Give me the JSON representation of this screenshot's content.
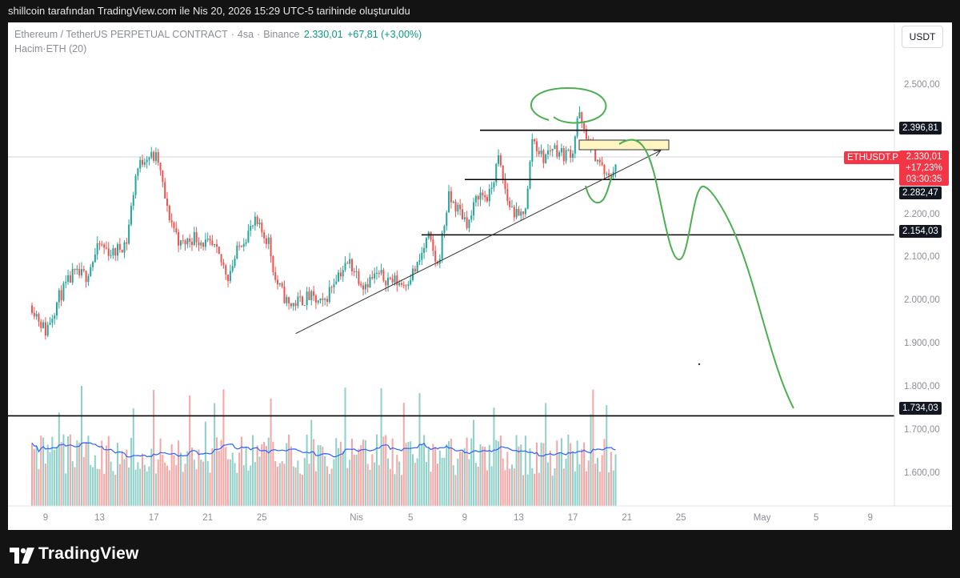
{
  "header": {
    "publish_note": "shillcoin tarafından TradingView.com ile Nis 20, 2026 15:29 UTC-5 tarihinde oluşturuldu"
  },
  "legend": {
    "symbol": "Ethereum / TetherUS PERPETUAL CONTRACT",
    "interval": "4sa",
    "exchange": "Binance",
    "price": "2.330,01",
    "change": "+67,81 (+3,00%)",
    "volume_label": "Hacim",
    "volume_ma": "ETH (20)"
  },
  "toolbar": {
    "currency": "USDT"
  },
  "price_tags": {
    "symbol": "ETHUSDT.P",
    "last_price": "2.330,01",
    "last_change": "+17,23%",
    "countdown": "03:30:35",
    "levels": [
      "2.396,81",
      "2.282,47",
      "2.154,03",
      "1.734,03"
    ]
  },
  "footer": {
    "brand": "TradingView"
  },
  "colors": {
    "up": "#26a69a",
    "down": "#ef5350",
    "vol_up": "#8fd1c9",
    "vol_down": "#f5a7a6",
    "ma_line": "#2962ff",
    "drawing": "#4caf50",
    "tag_red": "#f23645"
  },
  "chart_data": {
    "type": "candlestick",
    "title": "",
    "y_axis": {
      "ticks": [
        1600,
        1700,
        1800,
        1900,
        2000,
        2100,
        2200,
        2300,
        2400,
        2500
      ],
      "tick_labels": [
        "1.600,00",
        "1.700,00",
        "1.800,00",
        "1.900,00",
        "2.000,00",
        "2.100,00",
        "2.200,00",
        "2.300,00",
        "2.400,00",
        "2.500,00"
      ],
      "range": [
        1520,
        2560
      ]
    },
    "x_axis": {
      "tick_labels": [
        "9",
        "13",
        "17",
        "21",
        "25",
        "Nis",
        "5",
        "9",
        "13",
        "17",
        "21",
        "25",
        "May",
        "5",
        "9"
      ],
      "tick_days": [
        9,
        13,
        17,
        21,
        25,
        32,
        36,
        40,
        44,
        48,
        52,
        56,
        62,
        66,
        70
      ],
      "start_day": 8,
      "start_label": "8 Mart 2026"
    },
    "levels": [
      {
        "price": 2396.81,
        "label": "2.396,81"
      },
      {
        "price": 2282.47,
        "label": "2.282,47"
      },
      {
        "price": 2154.03,
        "label": "2.154,03"
      },
      {
        "price": 1734.03,
        "label": "1.734,03"
      }
    ],
    "trendline": {
      "from": {
        "day": 27.5,
        "price": 1925
      },
      "to": {
        "day": 54.5,
        "price": 2350
      }
    },
    "anchors": [
      {
        "day": 8.0,
        "price": 1990
      },
      {
        "day": 9.0,
        "price": 1930
      },
      {
        "day": 10.0,
        "price": 2010
      },
      {
        "day": 11.0,
        "price": 2060
      },
      {
        "day": 12.0,
        "price": 2060
      },
      {
        "day": 13.0,
        "price": 2130
      },
      {
        "day": 14.0,
        "price": 2110
      },
      {
        "day": 15.0,
        "price": 2140
      },
      {
        "day": 15.7,
        "price": 2300
      },
      {
        "day": 16.4,
        "price": 2340
      },
      {
        "day": 17.3,
        "price": 2330
      },
      {
        "day": 18.0,
        "price": 2210
      },
      {
        "day": 19.0,
        "price": 2130
      },
      {
        "day": 20.0,
        "price": 2150
      },
      {
        "day": 21.5,
        "price": 2120
      },
      {
        "day": 22.5,
        "price": 2060
      },
      {
        "day": 23.5,
        "price": 2140
      },
      {
        "day": 24.5,
        "price": 2180
      },
      {
        "day": 25.5,
        "price": 2140
      },
      {
        "day": 26.0,
        "price": 2050
      },
      {
        "day": 27.0,
        "price": 1990
      },
      {
        "day": 28.5,
        "price": 2010
      },
      {
        "day": 29.5,
        "price": 1990
      },
      {
        "day": 30.5,
        "price": 2060
      },
      {
        "day": 31.5,
        "price": 2090
      },
      {
        "day": 32.5,
        "price": 2040
      },
      {
        "day": 33.5,
        "price": 2060
      },
      {
        "day": 34.5,
        "price": 2050
      },
      {
        "day": 35.5,
        "price": 2040
      },
      {
        "day": 36.5,
        "price": 2080
      },
      {
        "day": 37.3,
        "price": 2150
      },
      {
        "day": 38.0,
        "price": 2080
      },
      {
        "day": 38.8,
        "price": 2240
      },
      {
        "day": 39.6,
        "price": 2210
      },
      {
        "day": 40.3,
        "price": 2180
      },
      {
        "day": 41.0,
        "price": 2250
      },
      {
        "day": 41.8,
        "price": 2240
      },
      {
        "day": 42.5,
        "price": 2330
      },
      {
        "day": 43.2,
        "price": 2230
      },
      {
        "day": 44.0,
        "price": 2190
      },
      {
        "day": 44.6,
        "price": 2230
      },
      {
        "day": 45.0,
        "price": 2380
      },
      {
        "day": 45.8,
        "price": 2330
      },
      {
        "day": 46.5,
        "price": 2360
      },
      {
        "day": 47.3,
        "price": 2340
      },
      {
        "day": 48.0,
        "price": 2350
      },
      {
        "day": 48.4,
        "price": 2440
      },
      {
        "day": 48.9,
        "price": 2380
      },
      {
        "day": 49.5,
        "price": 2350
      },
      {
        "day": 50.0,
        "price": 2320
      },
      {
        "day": 50.6,
        "price": 2280
      },
      {
        "day": 51.3,
        "price": 2330
      }
    ],
    "volume": {
      "ma_period": 20
    }
  }
}
